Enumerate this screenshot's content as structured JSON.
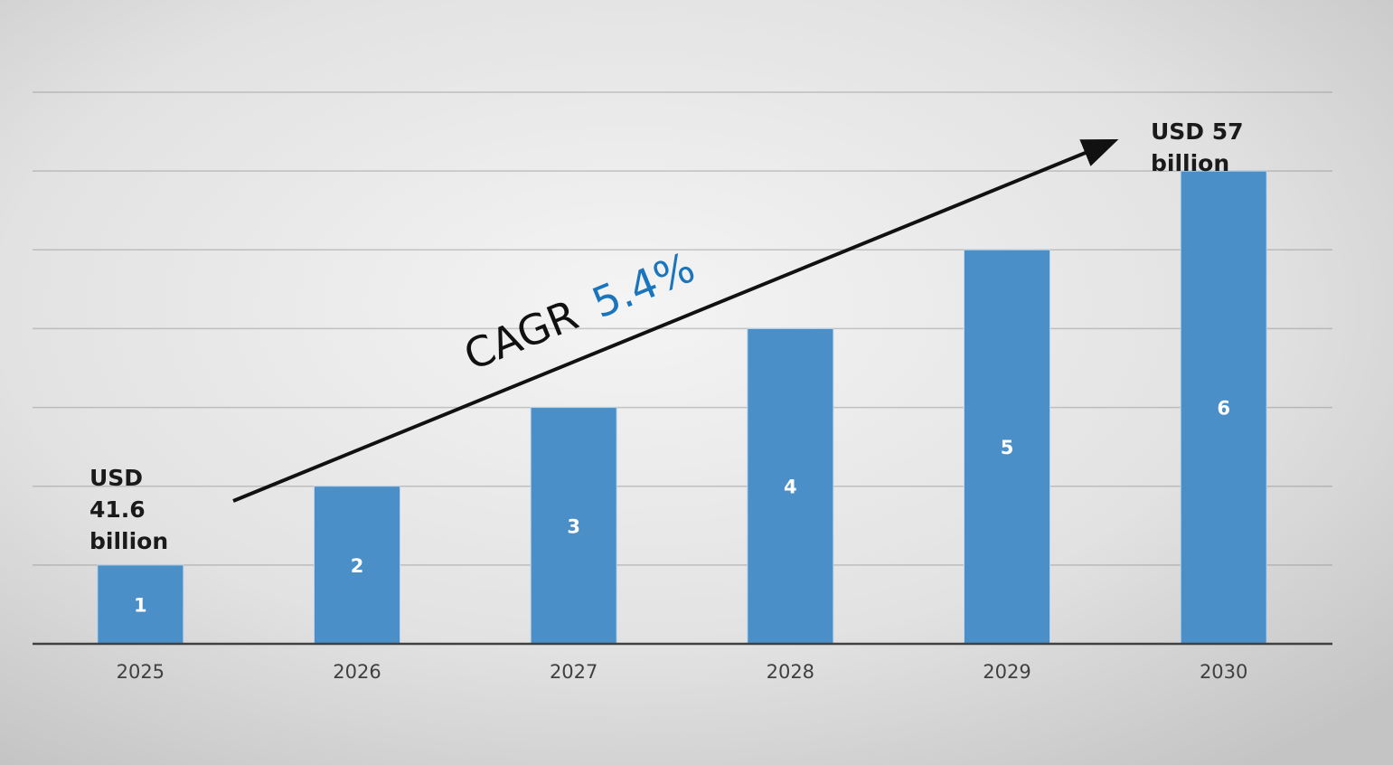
{
  "chart_data": {
    "type": "bar",
    "categories": [
      "2025",
      "2026",
      "2027",
      "2028",
      "2029",
      "2030"
    ],
    "values": [
      1,
      2,
      3,
      4,
      5,
      6
    ],
    "data_labels": [
      "1",
      "2",
      "3",
      "4",
      "5",
      "6"
    ],
    "title": "",
    "xlabel": "",
    "ylabel": "",
    "ylim": [
      0,
      7
    ],
    "grid": true,
    "bar_color": "#4a8fc8",
    "annotations": {
      "start_label": [
        "USD",
        "41.6",
        "billion"
      ],
      "end_label": [
        "USD 57",
        "billion"
      ],
      "cagr_prefix": "CAGR",
      "cagr_value": "5.4%",
      "cagr_color": "#1b75bc"
    }
  }
}
